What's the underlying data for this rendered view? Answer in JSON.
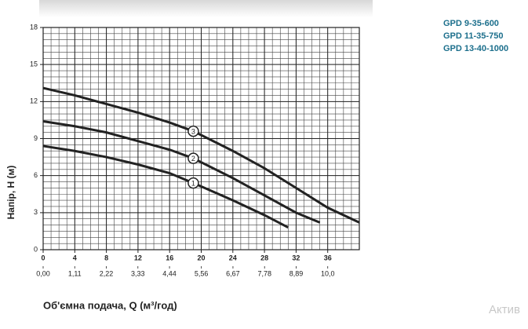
{
  "chart_data": {
    "type": "line",
    "y_label": "Напір, H (м)",
    "x_label": "Об'ємна подача, Q (м³/год)",
    "xlim": [
      0,
      40
    ],
    "xticks": [
      0,
      4,
      8,
      12,
      16,
      20,
      24,
      28,
      32,
      36
    ],
    "x2lim": [
      0,
      11.11
    ],
    "x2ticks": [
      {
        "value": 0,
        "label": "0,00"
      },
      {
        "value": 1.11,
        "label": "1,11"
      },
      {
        "value": 2.22,
        "label": "2,22"
      },
      {
        "value": 3.33,
        "label": "3,33"
      },
      {
        "value": 4.44,
        "label": "4,44"
      },
      {
        "value": 5.56,
        "label": "5,56"
      },
      {
        "value": 6.67,
        "label": "6,67"
      },
      {
        "value": 7.78,
        "label": "7,78"
      },
      {
        "value": 8.89,
        "label": "8,89"
      },
      {
        "value": 10.0,
        "label": "10,0"
      }
    ],
    "ylim": [
      0,
      18
    ],
    "yticks": [
      0,
      3,
      6,
      9,
      12,
      15,
      18
    ],
    "grid": true,
    "legend_position": "right",
    "legend_color": "#1c6f8c",
    "series": [
      {
        "name": "GPD 9-35-600",
        "label": "1",
        "color": "#222222",
        "x": [
          0,
          4,
          8,
          12,
          16,
          19,
          24,
          28,
          31
        ],
        "values": [
          8.4,
          8.0,
          7.5,
          6.9,
          6.2,
          5.4,
          4.0,
          2.8,
          1.8
        ]
      },
      {
        "name": "GPD 11-35-750",
        "label": "2",
        "color": "#222222",
        "x": [
          0,
          4,
          8,
          12,
          16,
          19,
          24,
          28,
          32,
          35
        ],
        "values": [
          10.4,
          10.0,
          9.5,
          8.8,
          8.1,
          7.4,
          5.8,
          4.4,
          3.0,
          2.2
        ]
      },
      {
        "name": "GPD 13-40-1000",
        "label": "3",
        "color": "#222222",
        "x": [
          0,
          4,
          8,
          12,
          16,
          19,
          24,
          28,
          32,
          36,
          40
        ],
        "values": [
          13.1,
          12.5,
          11.8,
          11.1,
          10.3,
          9.6,
          8.0,
          6.6,
          5.0,
          3.4,
          2.2
        ]
      }
    ],
    "watermark": "Актив"
  }
}
